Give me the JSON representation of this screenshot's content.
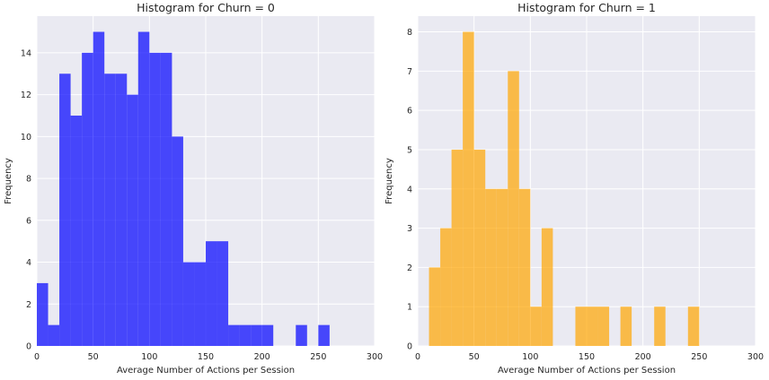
{
  "chart_data": [
    {
      "type": "bar",
      "title": "Histogram for Churn = 0",
      "xlabel": "Average Number of Actions per Session",
      "ylabel": "Frequency",
      "xlim": [
        0,
        300
      ],
      "ylim": [
        0,
        15.75
      ],
      "xticks": [
        0,
        50,
        100,
        150,
        200,
        250,
        300
      ],
      "yticks": [
        0,
        2,
        4,
        6,
        8,
        10,
        12,
        14
      ],
      "grid": true,
      "color": "#0000ff",
      "opacity": 0.7,
      "bin_width": 10,
      "bars": [
        {
          "x0": 0,
          "value": 3
        },
        {
          "x0": 10,
          "value": 1
        },
        {
          "x0": 20,
          "value": 13
        },
        {
          "x0": 30,
          "value": 11
        },
        {
          "x0": 40,
          "value": 14
        },
        {
          "x0": 50,
          "value": 15
        },
        {
          "x0": 60,
          "value": 13
        },
        {
          "x0": 70,
          "value": 13
        },
        {
          "x0": 80,
          "value": 12
        },
        {
          "x0": 90,
          "value": 15
        },
        {
          "x0": 100,
          "value": 14
        },
        {
          "x0": 110,
          "value": 14
        },
        {
          "x0": 120,
          "value": 10
        },
        {
          "x0": 130,
          "value": 4
        },
        {
          "x0": 140,
          "value": 4
        },
        {
          "x0": 150,
          "value": 5
        },
        {
          "x0": 160,
          "value": 5
        },
        {
          "x0": 170,
          "value": 1
        },
        {
          "x0": 180,
          "value": 1
        },
        {
          "x0": 190,
          "value": 1
        },
        {
          "x0": 200,
          "value": 1
        },
        {
          "x0": 230,
          "value": 1
        },
        {
          "x0": 250,
          "value": 1
        }
      ]
    },
    {
      "type": "bar",
      "title": "Histogram for Churn = 1",
      "xlabel": "Average Number of Actions per Session",
      "ylabel": "Frequency",
      "xlim": [
        0,
        300
      ],
      "ylim": [
        0,
        8.4
      ],
      "xticks": [
        0,
        50,
        100,
        150,
        200,
        250,
        300
      ],
      "yticks": [
        0,
        1,
        2,
        3,
        4,
        5,
        6,
        7,
        8
      ],
      "grid": true,
      "color": "#ffa500",
      "opacity": 0.7,
      "bin_width": 10,
      "bars": [
        {
          "x0": 10,
          "value": 2
        },
        {
          "x0": 20,
          "value": 3
        },
        {
          "x0": 30,
          "value": 5
        },
        {
          "x0": 40,
          "value": 8
        },
        {
          "x0": 50,
          "value": 5
        },
        {
          "x0": 60,
          "value": 4
        },
        {
          "x0": 70,
          "value": 4
        },
        {
          "x0": 80,
          "value": 7
        },
        {
          "x0": 90,
          "value": 4
        },
        {
          "x0": 100,
          "value": 1
        },
        {
          "x0": 110,
          "value": 3
        },
        {
          "x0": 140,
          "value": 1
        },
        {
          "x0": 150,
          "value": 1
        },
        {
          "x0": 160,
          "value": 1
        },
        {
          "x0": 180,
          "value": 1
        },
        {
          "x0": 210,
          "value": 1
        },
        {
          "x0": 240,
          "value": 1
        }
      ]
    }
  ]
}
